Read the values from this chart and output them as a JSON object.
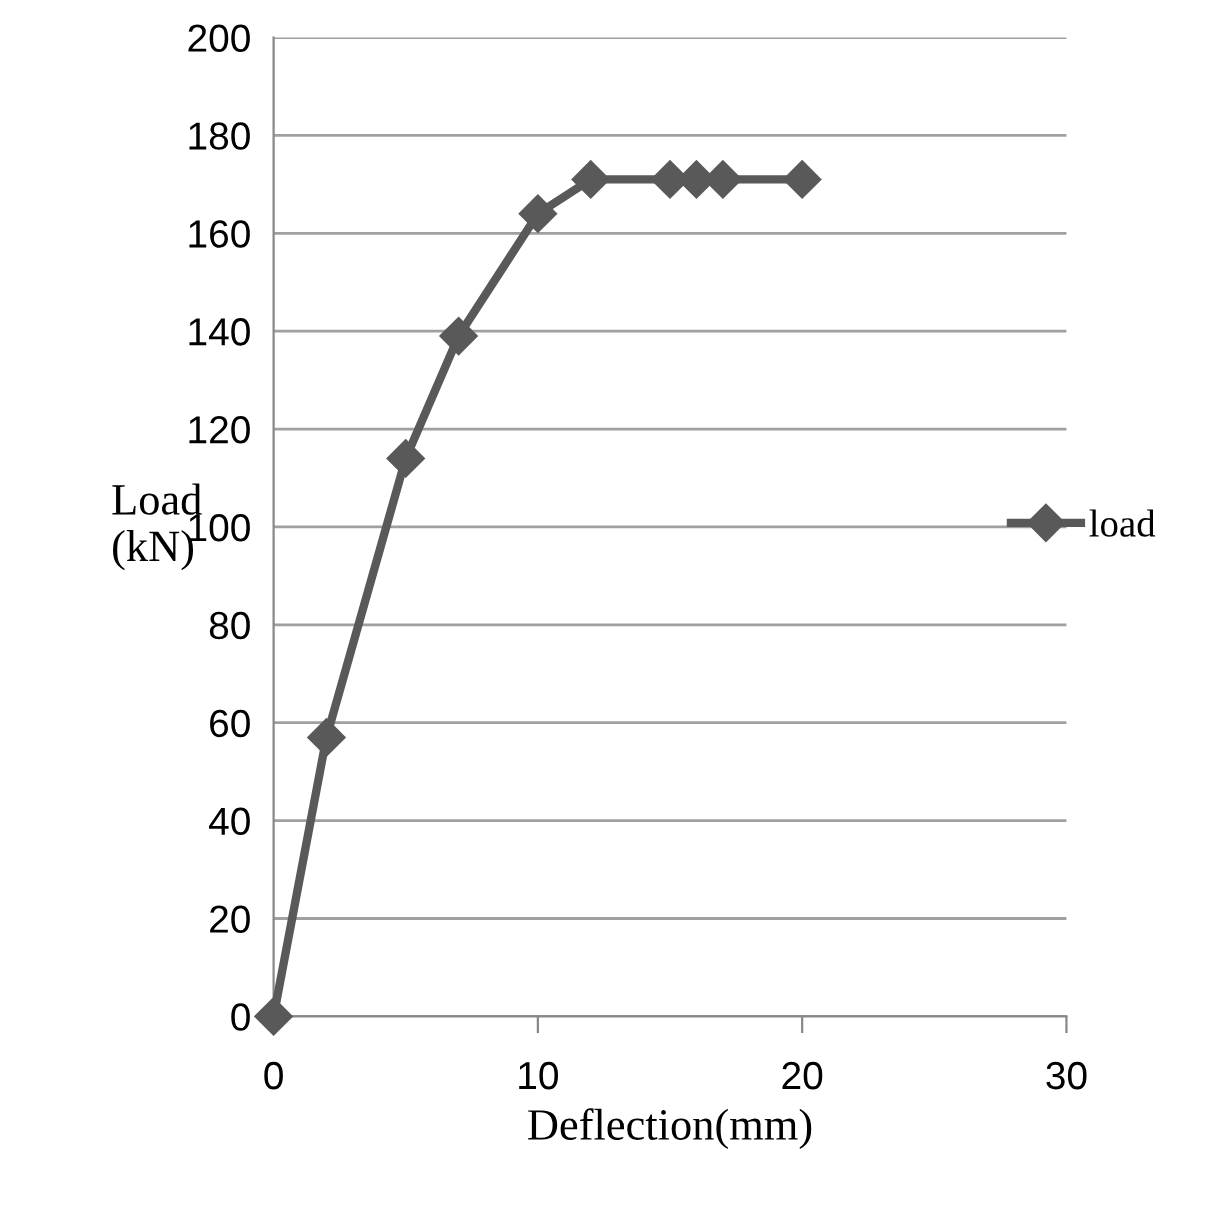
{
  "chart_data": {
    "type": "line",
    "xlabel": "Deflection(mm)",
    "ylabel": "Load\n(kN)",
    "x": [
      0,
      2,
      5,
      7,
      10,
      12,
      15,
      16,
      17,
      20
    ],
    "series": [
      {
        "name": "load",
        "color": "#595959",
        "values": [
          0,
          57,
          114,
          139,
          164,
          171,
          171,
          171,
          171,
          171
        ]
      }
    ],
    "xlim": [
      0,
      30
    ],
    "xticks": [
      0,
      10,
      20,
      30
    ],
    "ylim": [
      0,
      200
    ],
    "yticks": [
      0,
      20,
      40,
      60,
      80,
      100,
      120,
      140,
      160,
      180,
      200
    ],
    "grid": "y",
    "legend": "right",
    "marker": "diamond",
    "line_style": "solid"
  }
}
